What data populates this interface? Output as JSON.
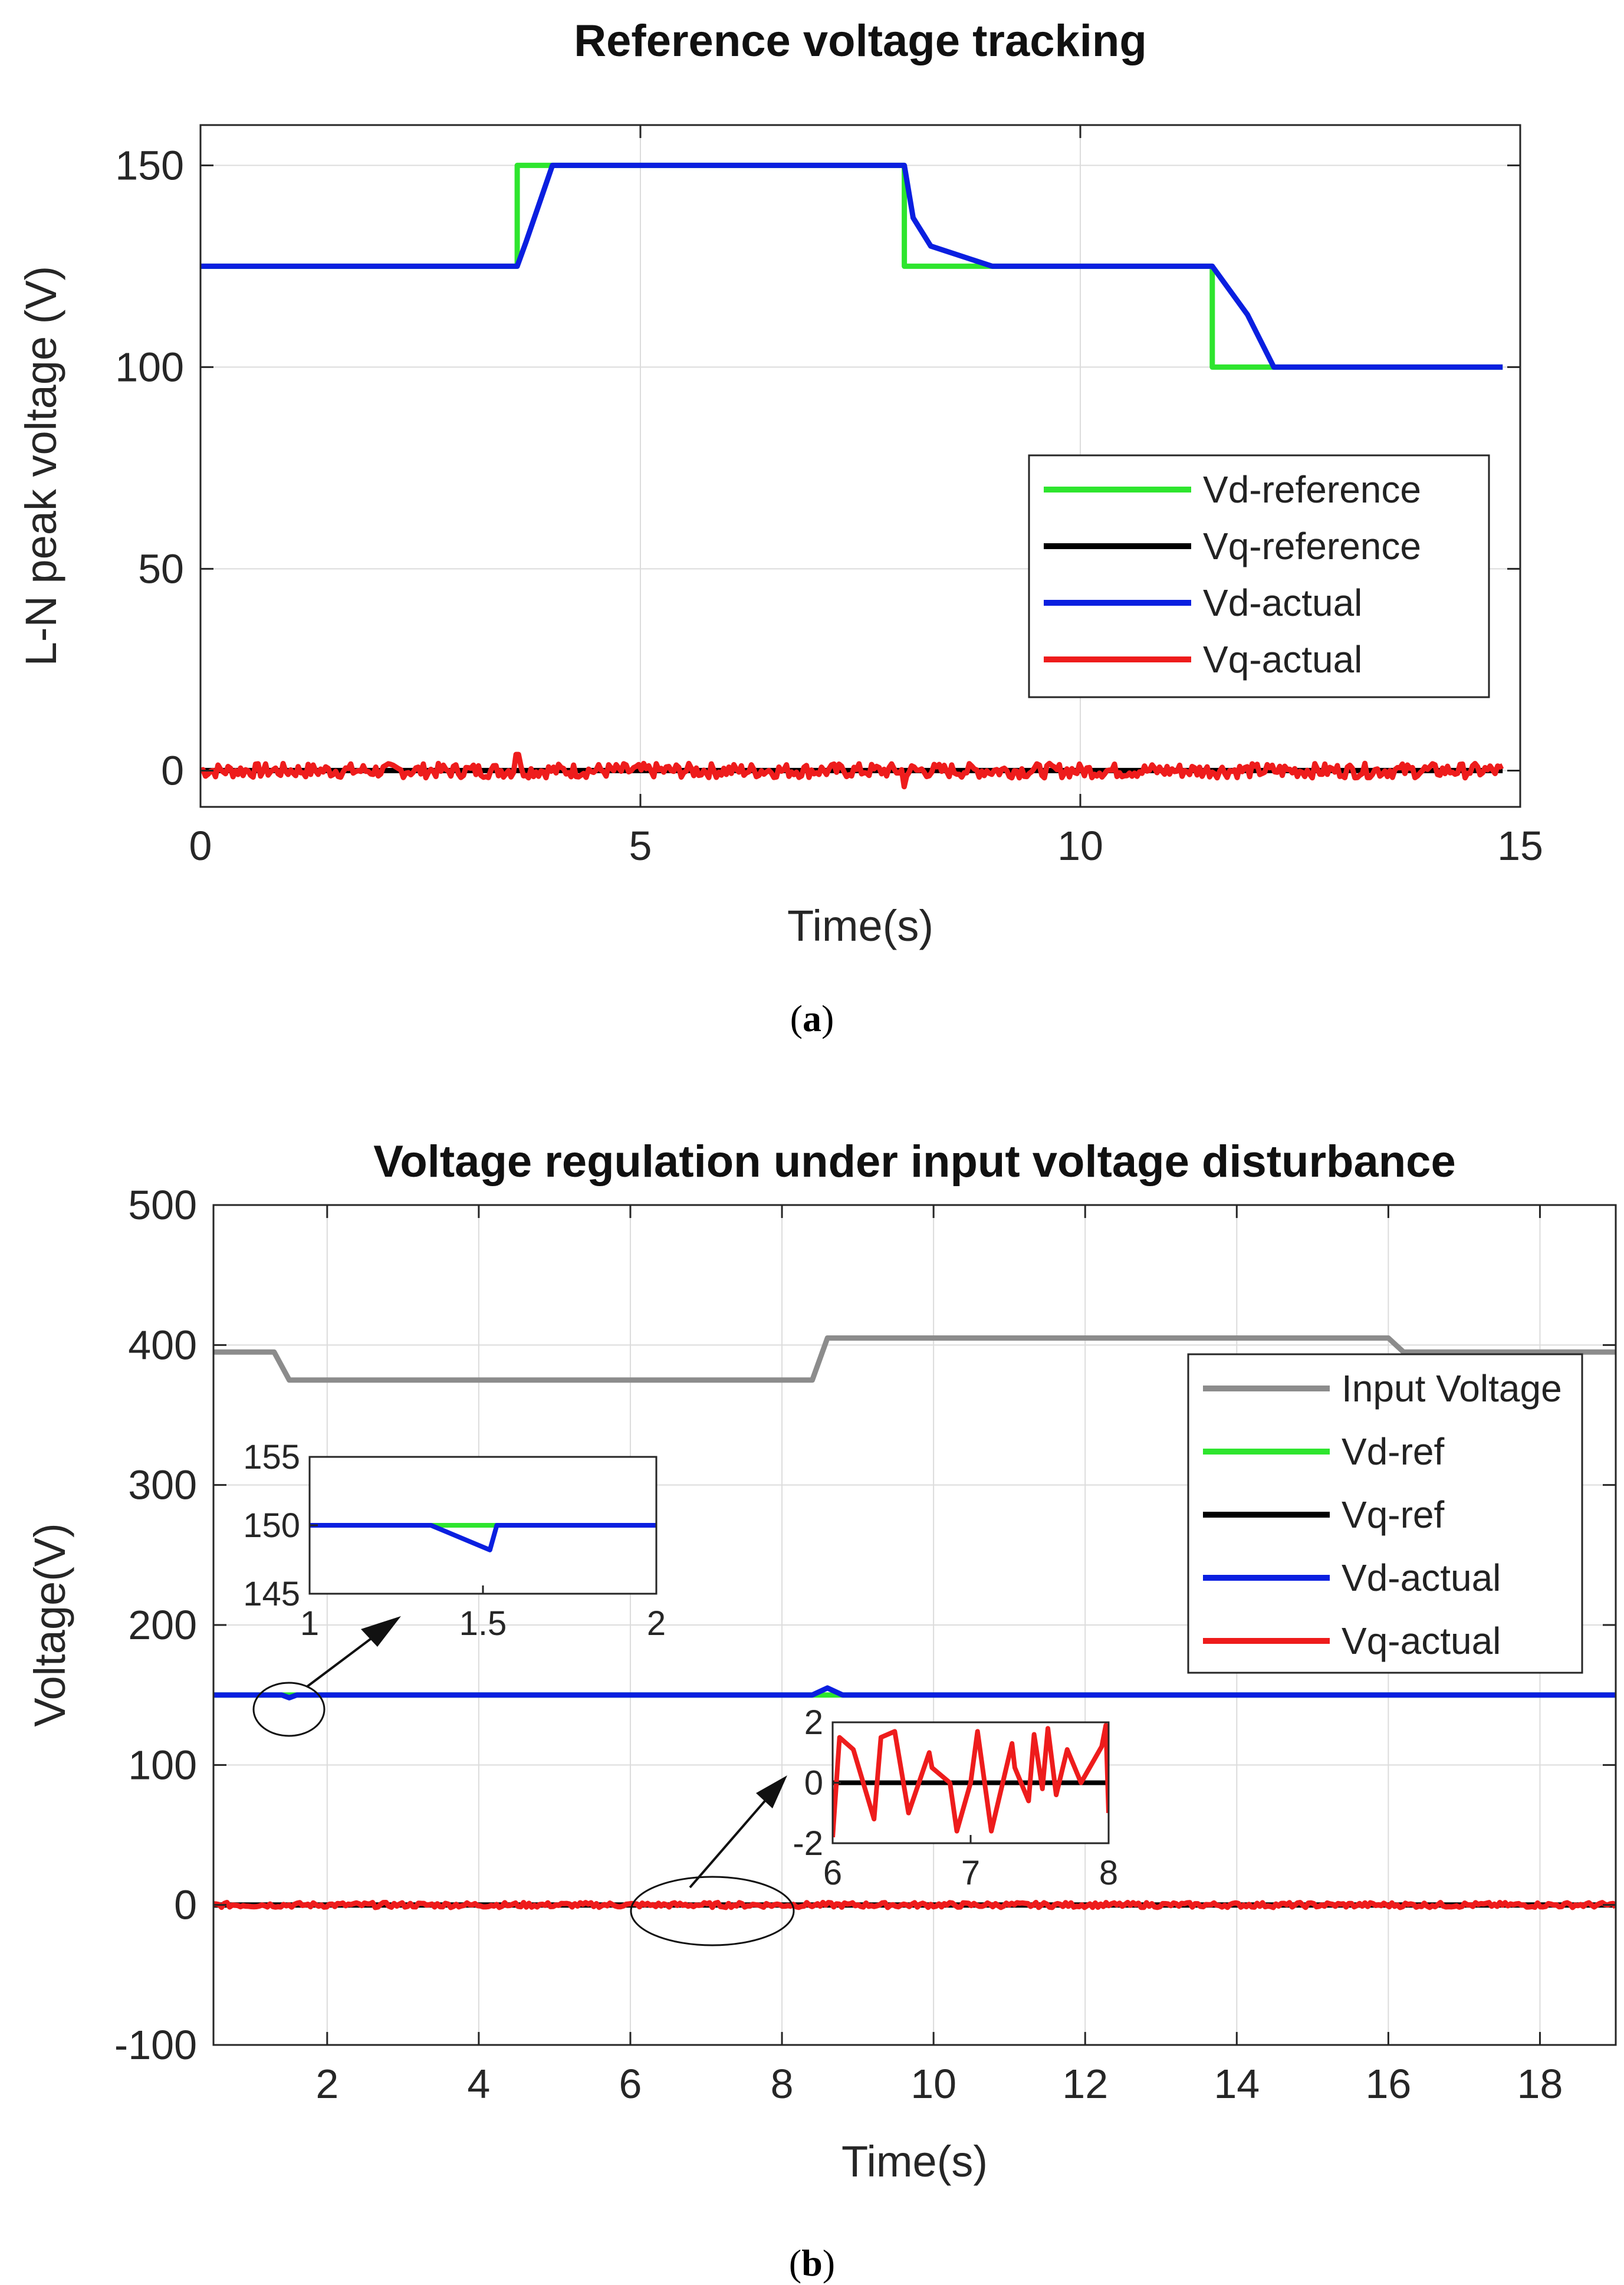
{
  "captions": {
    "a": "a",
    "b": "b"
  },
  "colors": {
    "green": "#2EE52E",
    "black": "#000000",
    "blue": "#0A1FE0",
    "red": "#EE1C1C",
    "gray": "#8C8C8C",
    "grid": "#DCDCDC",
    "axis": "#262626"
  },
  "chart_data": [
    {
      "id": "a",
      "type": "line",
      "title": "Reference voltage tracking",
      "xlabel": "Time(s)",
      "ylabel": "L-N peak voltage (V)",
      "xlim": [
        0,
        15
      ],
      "ylim": [
        -9,
        160
      ],
      "xticks": [
        0,
        5,
        10,
        15
      ],
      "yticks": [
        0,
        50,
        100,
        150
      ],
      "grid": true,
      "legend_position": "right",
      "series": [
        {
          "name": "Vd-reference",
          "color": "green",
          "x": [
            0,
            3.6,
            3.6,
            8.0,
            8.0,
            11.5,
            11.5,
            14.8
          ],
          "y": [
            125,
            125,
            150,
            150,
            125,
            125,
            100,
            100
          ]
        },
        {
          "name": "Vq-reference",
          "color": "black",
          "x": [
            0,
            14.8
          ],
          "y": [
            0,
            0
          ]
        },
        {
          "name": "Vd-actual",
          "color": "blue",
          "x": [
            0,
            3.6,
            3.7,
            4.0,
            8.0,
            8.1,
            8.3,
            9.0,
            11.5,
            11.9,
            12.2,
            14.8
          ],
          "y": [
            125,
            125,
            131,
            150,
            150,
            137,
            130,
            125,
            125,
            113,
            100,
            100
          ]
        },
        {
          "name": "Vq-actual",
          "color": "red",
          "noise": "high-frequency ripple about 0 V, amplitude about ±2 V, visible spikes near 3.6 s and 8.0 s",
          "x": [
            0,
            3.6,
            3.6,
            3.7,
            8.0,
            8.0,
            8.1,
            14.8
          ],
          "y": [
            0,
            0,
            4,
            0,
            0,
            -4,
            0,
            0
          ]
        }
      ]
    },
    {
      "id": "b",
      "type": "line",
      "title": "Voltage regulation under input voltage disturbance",
      "xlabel": "Time(s)",
      "ylabel": "Voltage(V)",
      "xlim": [
        0.5,
        19
      ],
      "ylim": [
        -100,
        500
      ],
      "xticks": [
        2,
        4,
        6,
        8,
        10,
        12,
        14,
        16,
        18
      ],
      "yticks": [
        -100,
        0,
        100,
        200,
        300,
        400,
        500
      ],
      "grid": true,
      "legend_position": "right",
      "series": [
        {
          "name": "Input Voltage",
          "color": "gray",
          "x": [
            0.5,
            1.3,
            1.5,
            8.4,
            8.6,
            16.0,
            16.2,
            19
          ],
          "y": [
            395,
            395,
            375,
            375,
            405,
            405,
            395,
            395
          ]
        },
        {
          "name": "Vd-ref",
          "color": "green",
          "x": [
            0.5,
            19
          ],
          "y": [
            150,
            150
          ]
        },
        {
          "name": "Vq-ref",
          "color": "black",
          "x": [
            0.5,
            19
          ],
          "y": [
            0,
            0
          ]
        },
        {
          "name": "Vd-actual",
          "color": "blue",
          "x": [
            0.5,
            1.4,
            1.5,
            1.6,
            8.4,
            8.6,
            8.8,
            19
          ],
          "y": [
            150,
            150,
            148,
            150,
            150,
            155,
            150,
            150
          ]
        },
        {
          "name": "Vq-actual",
          "color": "red",
          "noise": "ripple about 0 V, amplitude about ±2 V",
          "x": [
            0.5,
            19
          ],
          "y": [
            0,
            0
          ]
        }
      ],
      "insets": [
        {
          "name": "inset-vd-zoom",
          "xlim": [
            1,
            2
          ],
          "ylim": [
            145,
            155
          ],
          "xticks": [
            1,
            1.5,
            2
          ],
          "xtick_labels": [
            "1",
            "1.5",
            "2"
          ],
          "yticks": [
            145,
            150,
            155
          ],
          "series": [
            {
              "name": "Vd-ref",
              "color": "green",
              "x": [
                1,
                2
              ],
              "y": [
                150,
                150
              ]
            },
            {
              "name": "Vd-actual",
              "color": "blue",
              "x": [
                1,
                1.35,
                1.52,
                1.54,
                1.6,
                2
              ],
              "y": [
                150,
                150,
                148.2,
                150,
                150,
                150
              ]
            }
          ]
        },
        {
          "name": "inset-vq-zoom",
          "xlim": [
            6,
            8
          ],
          "ylim": [
            -2,
            2
          ],
          "xticks": [
            6,
            7,
            8
          ],
          "yticks": [
            -2,
            0,
            2
          ],
          "series": [
            {
              "name": "Vq-ref",
              "color": "black",
              "x": [
                6,
                8
              ],
              "y": [
                0,
                0
              ]
            },
            {
              "name": "Vq-actual",
              "color": "red",
              "x": [
                6.0,
                6.05,
                6.15,
                6.3,
                6.35,
                6.45,
                6.55,
                6.7,
                6.72,
                6.85,
                6.9,
                7.0,
                7.05,
                7.15,
                7.3,
                7.32,
                7.42,
                7.46,
                7.52,
                7.56,
                7.62,
                7.7,
                7.8,
                7.95,
                7.98,
                8.0
              ],
              "y": [
                -1.8,
                1.5,
                1.1,
                -1.2,
                1.5,
                1.7,
                -1.0,
                1.0,
                0.5,
                0.0,
                -1.6,
                0.0,
                1.7,
                -1.6,
                1.3,
                0.5,
                -0.6,
                1.6,
                -0.2,
                1.8,
                -0.4,
                1.1,
                0.0,
                1.2,
                1.9,
                -1.0
              ]
            }
          ]
        }
      ]
    }
  ]
}
